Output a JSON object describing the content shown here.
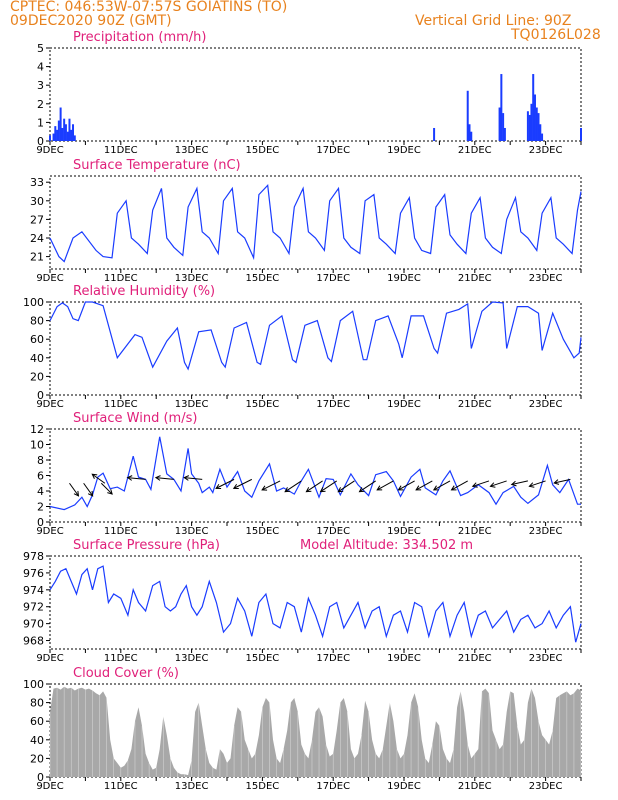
{
  "header": {
    "line1": "CPTEC:   046:53W-07:57S   GOIATINS (TO)",
    "line2": "09DEC2020 90Z (GMT)",
    "grid_note": "Vertical Grid Line: 90Z",
    "code": "TQ0126L028"
  },
  "colors": {
    "header": "#e8821e",
    "title": "#e0207a",
    "line": "#1a3cff",
    "cloud_fill": "#a8a8a8",
    "wind_arrow": "#000000"
  },
  "chart_data": [
    {
      "id": "precip",
      "type": "bar",
      "title": "Precipitation (mm/h)",
      "ylim": [
        0,
        5
      ],
      "yticks": [
        0,
        1,
        2,
        3,
        4,
        5
      ],
      "xlim": [
        0,
        15
      ],
      "xtick_labels": [
        "9DEC",
        "11DEC",
        "13DEC",
        "15DEC",
        "17DEC",
        "19DEC",
        "21DEC",
        "23DEC"
      ],
      "x": [
        0.0,
        0.1,
        0.15,
        0.2,
        0.25,
        0.3,
        0.35,
        0.4,
        0.45,
        0.5,
        0.55,
        0.6,
        0.65,
        0.7,
        10.85,
        11.8,
        11.85,
        11.9,
        12.7,
        12.75,
        12.8,
        12.85,
        13.5,
        13.55,
        13.6,
        13.65,
        13.7,
        13.75,
        13.8,
        13.85,
        13.9,
        15.0
      ],
      "values": [
        0.3,
        0.4,
        0.8,
        0.6,
        1.1,
        1.8,
        0.7,
        1.2,
        0.9,
        0.5,
        1.2,
        0.6,
        0.9,
        0.3,
        0.7,
        2.7,
        0.9,
        0.5,
        1.8,
        3.6,
        1.5,
        0.7,
        1.6,
        1.4,
        2.0,
        3.6,
        2.5,
        1.8,
        1.5,
        0.9,
        0.4,
        0.7
      ]
    },
    {
      "id": "temp",
      "type": "line",
      "title": "Surface Temperature (nC)",
      "ylim": [
        19,
        34
      ],
      "yticks": [
        21,
        24,
        27,
        30,
        33
      ],
      "xlim": [
        0,
        15
      ],
      "xtick_labels": [
        "9DEC",
        "11DEC",
        "13DEC",
        "15DEC",
        "17DEC",
        "19DEC",
        "21DEC",
        "23DEC"
      ],
      "x": [
        0.0,
        0.25,
        0.4,
        0.65,
        0.9,
        1.3,
        1.5,
        1.75,
        1.9,
        2.15,
        2.3,
        2.5,
        2.75,
        2.9,
        3.15,
        3.3,
        3.5,
        3.75,
        3.9,
        4.15,
        4.3,
        4.5,
        4.75,
        4.9,
        5.15,
        5.3,
        5.5,
        5.75,
        5.9,
        6.15,
        6.3,
        6.5,
        6.75,
        6.9,
        7.15,
        7.3,
        7.5,
        7.75,
        7.9,
        8.15,
        8.3,
        8.5,
        8.75,
        8.9,
        9.15,
        9.3,
        9.5,
        9.75,
        9.9,
        10.15,
        10.3,
        10.5,
        10.75,
        10.9,
        11.15,
        11.3,
        11.5,
        11.75,
        11.9,
        12.15,
        12.3,
        12.5,
        12.75,
        12.9,
        13.15,
        13.3,
        13.5,
        13.75,
        13.9,
        14.15,
        14.3,
        14.5,
        14.75,
        14.9,
        15.0
      ],
      "values": [
        24,
        21,
        20.2,
        24,
        25,
        22,
        21,
        20.8,
        28,
        30,
        24,
        23,
        21.5,
        28.5,
        32,
        24,
        22.5,
        21.2,
        29,
        32,
        25,
        24,
        21.5,
        30,
        32,
        25,
        24,
        20.8,
        31,
        32.5,
        25,
        24,
        21.5,
        29,
        32,
        25,
        24,
        22,
        30,
        32,
        24,
        22.5,
        21.5,
        30,
        31,
        24,
        23,
        21.5,
        28,
        30.5,
        24,
        22,
        21.5,
        29,
        31,
        24.5,
        23,
        21.5,
        28,
        30.5,
        24,
        22.5,
        21.5,
        27,
        30.5,
        25,
        24,
        22,
        28,
        30.5,
        24,
        23,
        21.5,
        28.5,
        31.5
      ]
    },
    {
      "id": "rh",
      "type": "line",
      "title": "Relative Humidity (%)",
      "ylim": [
        0,
        100
      ],
      "yticks": [
        0,
        20,
        40,
        60,
        80,
        100
      ],
      "xlim": [
        0,
        15
      ],
      "xtick_labels": [
        "9DEC",
        "11DEC",
        "13DEC",
        "15DEC",
        "17DEC",
        "19DEC",
        "21DEC",
        "23DEC"
      ],
      "x": [
        0.0,
        0.2,
        0.35,
        0.5,
        0.65,
        0.8,
        1.0,
        1.2,
        1.5,
        1.9,
        2.2,
        2.4,
        2.6,
        2.9,
        3.3,
        3.6,
        3.8,
        3.9,
        4.2,
        4.55,
        4.85,
        4.95,
        5.2,
        5.55,
        5.85,
        5.95,
        6.2,
        6.55,
        6.85,
        6.95,
        7.2,
        7.55,
        7.85,
        7.95,
        8.2,
        8.55,
        8.85,
        8.95,
        9.2,
        9.55,
        9.85,
        9.95,
        10.2,
        10.55,
        10.85,
        10.95,
        11.2,
        11.55,
        11.8,
        11.9,
        12.2,
        12.5,
        12.8,
        12.9,
        13.2,
        13.5,
        13.8,
        13.9,
        14.2,
        14.5,
        14.8,
        14.95,
        15.0
      ],
      "values": [
        80,
        95,
        99,
        95,
        82,
        80,
        100,
        100,
        96,
        40,
        55,
        65,
        62,
        30,
        58,
        72,
        35,
        28,
        68,
        70,
        35,
        30,
        72,
        78,
        35,
        33,
        75,
        85,
        38,
        35,
        75,
        80,
        40,
        36,
        80,
        90,
        38,
        38,
        80,
        85,
        55,
        40,
        85,
        85,
        50,
        45,
        88,
        92,
        98,
        50,
        90,
        100,
        99,
        50,
        95,
        95,
        88,
        48,
        88,
        60,
        40,
        45,
        62
      ]
    },
    {
      "id": "wind",
      "type": "line",
      "title": "Surface Wind (m/s)",
      "ylim": [
        0,
        12
      ],
      "yticks": [
        0,
        2,
        4,
        6,
        8,
        10,
        12
      ],
      "xlim": [
        0,
        15
      ],
      "xtick_labels": [
        "9DEC",
        "11DEC",
        "13DEC",
        "15DEC",
        "17DEC",
        "19DEC",
        "21DEC",
        "23DEC"
      ],
      "x": [
        0.0,
        0.4,
        0.7,
        0.9,
        1.05,
        1.2,
        1.35,
        1.5,
        1.7,
        1.9,
        2.1,
        2.35,
        2.5,
        2.7,
        2.85,
        3.1,
        3.3,
        3.5,
        3.7,
        3.9,
        4.0,
        4.2,
        4.3,
        4.5,
        4.6,
        4.8,
        5.0,
        5.3,
        5.5,
        5.7,
        5.9,
        6.2,
        6.4,
        6.6,
        6.9,
        7.1,
        7.3,
        7.6,
        7.8,
        8.0,
        8.2,
        8.5,
        8.7,
        9.0,
        9.2,
        9.5,
        9.7,
        9.9,
        10.2,
        10.45,
        10.6,
        10.9,
        11.1,
        11.3,
        11.6,
        11.8,
        12.1,
        12.4,
        12.6,
        12.8,
        13.1,
        13.3,
        13.5,
        13.8,
        14.05,
        14.2,
        14.4,
        14.65,
        14.9,
        15.0
      ],
      "values": [
        2,
        1.6,
        2.2,
        3.2,
        2.0,
        3.5,
        5.8,
        6.3,
        4.3,
        4.5,
        4.0,
        8.5,
        5.8,
        5.5,
        4.2,
        11.0,
        6.2,
        5.5,
        4.0,
        9.5,
        6.2,
        5.0,
        3.8,
        4.5,
        3.8,
        6.8,
        4.5,
        6.5,
        4.0,
        3.2,
        5.3,
        7.5,
        4.0,
        4.4,
        3.6,
        5.3,
        6.8,
        3.2,
        5.6,
        5.5,
        3.5,
        6.2,
        4.8,
        3.4,
        6.1,
        6.5,
        5.3,
        3.3,
        5.8,
        6.8,
        4.4,
        3.5,
        5.3,
        6.6,
        3.4,
        3.8,
        4.8,
        3.8,
        2.3,
        3.8,
        4.6,
        3.2,
        2.4,
        3.5,
        7.3,
        4.8,
        3.8,
        5.5,
        2.3,
        2.3
      ],
      "wind_arrows": [
        {
          "x": 0.55,
          "y": 5,
          "u": 0.5,
          "v": -0.7
        },
        {
          "x": 0.95,
          "y": 5,
          "u": 0.5,
          "v": -0.7
        },
        {
          "x": 1.45,
          "y": 5,
          "u": 0.6,
          "v": -0.6
        },
        {
          "x": 1.55,
          "y": 5,
          "u": -0.7,
          "v": 0.5
        },
        {
          "x": 2.7,
          "y": 5.5,
          "u": -1.0,
          "v": 0.1
        },
        {
          "x": 3.5,
          "y": 5.5,
          "u": -1.0,
          "v": 0.1
        },
        {
          "x": 4.3,
          "y": 5.5,
          "u": -1.0,
          "v": 0.1
        },
        {
          "x": 5.2,
          "y": 5.5,
          "u": -1.0,
          "v": -0.5
        },
        {
          "x": 5.7,
          "y": 5.5,
          "u": -1.0,
          "v": -0.5
        },
        {
          "x": 6.5,
          "y": 5.3,
          "u": -1.0,
          "v": -0.5
        },
        {
          "x": 7.1,
          "y": 5.3,
          "u": -0.9,
          "v": -0.6
        },
        {
          "x": 7.7,
          "y": 5.3,
          "u": -0.9,
          "v": -0.6
        },
        {
          "x": 8.1,
          "y": 5.3,
          "u": -0.9,
          "v": -0.6
        },
        {
          "x": 8.6,
          "y": 5.3,
          "u": -0.9,
          "v": -0.6
        },
        {
          "x": 9.2,
          "y": 5.3,
          "u": -0.9,
          "v": -0.6
        },
        {
          "x": 9.7,
          "y": 5.3,
          "u": -0.9,
          "v": -0.5
        },
        {
          "x": 10.3,
          "y": 5.3,
          "u": -0.9,
          "v": -0.5
        },
        {
          "x": 10.8,
          "y": 5.3,
          "u": -0.9,
          "v": -0.5
        },
        {
          "x": 11.3,
          "y": 5.3,
          "u": -0.9,
          "v": -0.5
        },
        {
          "x": 11.8,
          "y": 5.3,
          "u": -0.9,
          "v": -0.5
        },
        {
          "x": 12.4,
          "y": 5.3,
          "u": -0.9,
          "v": -0.3
        },
        {
          "x": 12.9,
          "y": 5.3,
          "u": -0.9,
          "v": -0.3
        },
        {
          "x": 13.5,
          "y": 5.3,
          "u": -0.9,
          "v": -0.2
        },
        {
          "x": 14.0,
          "y": 5.3,
          "u": -0.9,
          "v": -0.3
        },
        {
          "x": 14.7,
          "y": 5.5,
          "u": -0.9,
          "v": -0.2
        }
      ]
    },
    {
      "id": "pres",
      "type": "line",
      "title": "Surface Pressure (hPa)",
      "annotation": "Model Altitude: 334.502  m",
      "ylim": [
        967,
        978
      ],
      "yticks": [
        968,
        970,
        972,
        974,
        976,
        978
      ],
      "xlim": [
        0,
        15
      ],
      "xtick_labels": [
        "9DEC",
        "11DEC",
        "13DEC",
        "15DEC",
        "17DEC",
        "19DEC",
        "21DEC",
        "23DEC"
      ],
      "x": [
        0.0,
        0.15,
        0.3,
        0.45,
        0.6,
        0.75,
        0.9,
        1.05,
        1.2,
        1.35,
        1.5,
        1.65,
        1.8,
        2.0,
        2.2,
        2.35,
        2.5,
        2.7,
        2.9,
        3.1,
        3.25,
        3.4,
        3.55,
        3.7,
        3.85,
        4.0,
        4.15,
        4.3,
        4.5,
        4.7,
        4.9,
        5.1,
        5.3,
        5.5,
        5.7,
        5.9,
        6.1,
        6.3,
        6.5,
        6.7,
        6.9,
        7.1,
        7.3,
        7.5,
        7.7,
        7.9,
        8.1,
        8.3,
        8.5,
        8.7,
        8.9,
        9.1,
        9.3,
        9.5,
        9.7,
        9.9,
        10.1,
        10.3,
        10.5,
        10.7,
        10.9,
        11.1,
        11.3,
        11.5,
        11.7,
        11.9,
        12.1,
        12.3,
        12.5,
        12.7,
        12.9,
        13.1,
        13.3,
        13.5,
        13.7,
        13.9,
        14.1,
        14.3,
        14.5,
        14.7,
        14.85,
        15.0
      ],
      "values": [
        974.0,
        975.0,
        976.2,
        976.5,
        975.0,
        973.5,
        975.8,
        976.5,
        974.0,
        976.5,
        976.8,
        972.5,
        973.5,
        973.0,
        971.0,
        974.0,
        972.5,
        971.5,
        974.5,
        975.0,
        972.0,
        971.5,
        972.0,
        973.5,
        974.5,
        972.0,
        971.0,
        972.0,
        975.0,
        972.5,
        969.0,
        970.0,
        973.0,
        971.5,
        968.5,
        972.5,
        973.5,
        970.0,
        969.5,
        972.5,
        972.0,
        969.0,
        973.0,
        971.0,
        968.5,
        972.0,
        972.5,
        969.5,
        971.0,
        972.5,
        969.5,
        971.5,
        972.0,
        968.5,
        971.0,
        971.5,
        969.0,
        972.5,
        972.0,
        968.5,
        971.5,
        972.5,
        968.5,
        971.0,
        972.5,
        968.5,
        971.0,
        971.5,
        969.5,
        970.5,
        971.5,
        969.0,
        970.5,
        971.0,
        969.5,
        970.0,
        971.5,
        969.5,
        971.0,
        972.0,
        967.8,
        970.0
      ]
    },
    {
      "id": "cloud",
      "type": "area",
      "title": "Cloud Cover (%)",
      "ylim": [
        0,
        100
      ],
      "yticks": [
        0,
        20,
        40,
        60,
        80,
        100
      ],
      "xlim": [
        0,
        15
      ],
      "xtick_labels": [
        "9DEC",
        "11DEC",
        "13DEC",
        "15DEC",
        "17DEC",
        "19DEC",
        "21DEC",
        "23DEC"
      ],
      "x": [
        0.0,
        0.1,
        0.2,
        0.3,
        0.4,
        0.5,
        0.6,
        0.7,
        0.8,
        0.9,
        1.0,
        1.1,
        1.2,
        1.3,
        1.4,
        1.5,
        1.6,
        1.7,
        1.8,
        1.9,
        2.0,
        2.1,
        2.2,
        2.3,
        2.4,
        2.5,
        2.6,
        2.7,
        2.8,
        2.9,
        3.0,
        3.1,
        3.2,
        3.3,
        3.4,
        3.5,
        3.6,
        3.7,
        3.8,
        3.9,
        4.0,
        4.1,
        4.2,
        4.3,
        4.4,
        4.5,
        4.6,
        4.7,
        4.8,
        4.9,
        5.0,
        5.1,
        5.2,
        5.3,
        5.4,
        5.5,
        5.6,
        5.7,
        5.8,
        5.9,
        6.0,
        6.1,
        6.2,
        6.3,
        6.4,
        6.5,
        6.6,
        6.7,
        6.8,
        6.9,
        7.0,
        7.1,
        7.2,
        7.3,
        7.4,
        7.5,
        7.6,
        7.7,
        7.8,
        7.9,
        8.0,
        8.1,
        8.2,
        8.3,
        8.4,
        8.5,
        8.6,
        8.7,
        8.8,
        8.9,
        9.0,
        9.1,
        9.2,
        9.3,
        9.4,
        9.5,
        9.6,
        9.7,
        9.8,
        9.9,
        10.0,
        10.1,
        10.2,
        10.3,
        10.4,
        10.5,
        10.6,
        10.7,
        10.8,
        10.9,
        11.0,
        11.1,
        11.2,
        11.3,
        11.4,
        11.5,
        11.6,
        11.7,
        11.8,
        11.9,
        12.0,
        12.1,
        12.2,
        12.3,
        12.4,
        12.5,
        12.6,
        12.7,
        12.8,
        12.9,
        13.0,
        13.1,
        13.2,
        13.3,
        13.4,
        13.5,
        13.6,
        13.7,
        13.8,
        13.9,
        14.0,
        14.1,
        14.2,
        14.3,
        14.4,
        14.5,
        14.6,
        14.7,
        14.8,
        14.9,
        15.0
      ],
      "values": [
        70,
        95,
        96,
        94,
        97,
        95,
        96,
        93,
        95,
        96,
        94,
        95,
        93,
        90,
        88,
        92,
        85,
        40,
        20,
        15,
        10,
        12,
        18,
        30,
        60,
        75,
        55,
        25,
        15,
        8,
        10,
        30,
        65,
        45,
        20,
        10,
        5,
        3,
        3,
        2,
        18,
        70,
        80,
        55,
        30,
        15,
        10,
        8,
        30,
        25,
        15,
        20,
        55,
        75,
        70,
        40,
        30,
        20,
        25,
        45,
        75,
        85,
        80,
        40,
        20,
        15,
        30,
        50,
        80,
        85,
        70,
        35,
        25,
        20,
        40,
        70,
        75,
        65,
        35,
        22,
        25,
        50,
        80,
        85,
        70,
        30,
        20,
        25,
        45,
        82,
        70,
        40,
        25,
        20,
        30,
        55,
        80,
        60,
        30,
        20,
        25,
        45,
        80,
        90,
        75,
        40,
        20,
        15,
        35,
        60,
        55,
        30,
        20,
        15,
        30,
        75,
        92,
        70,
        35,
        20,
        25,
        30,
        92,
        95,
        90,
        50,
        40,
        30,
        35,
        70,
        92,
        90,
        55,
        35,
        40,
        80,
        95,
        85,
        60,
        45,
        40,
        35,
        50,
        85,
        88,
        90,
        92,
        88,
        90,
        95,
        93
      ]
    }
  ]
}
